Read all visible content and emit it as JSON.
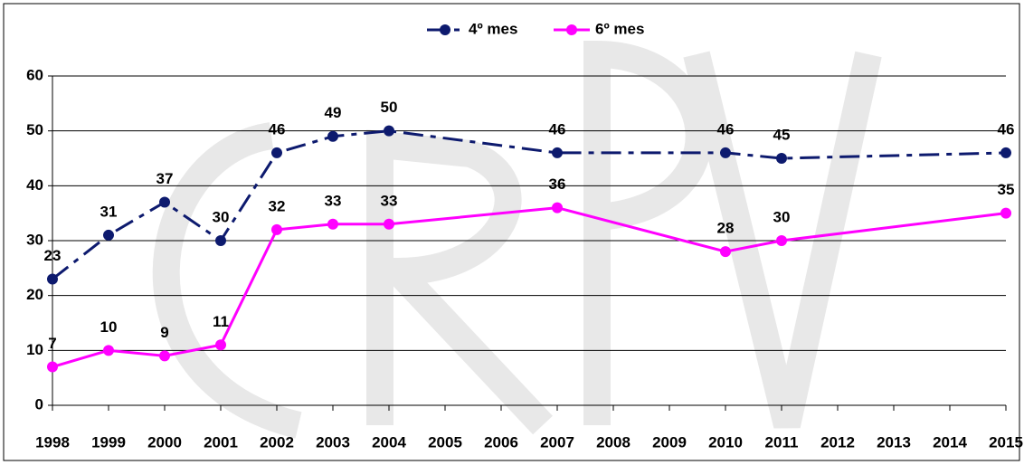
{
  "chart_data": {
    "type": "line",
    "x": [
      1998,
      1999,
      2000,
      2001,
      2002,
      2003,
      2004,
      2007,
      2010,
      2011,
      2015
    ],
    "series": [
      {
        "name": "4º mes",
        "color": "#0d1a6e",
        "line_style": "dash-dot",
        "values": [
          23,
          31,
          37,
          30,
          46,
          49,
          50,
          46,
          46,
          45,
          46
        ]
      },
      {
        "name": "6º mes",
        "color": "#ff00ff",
        "line_style": "solid",
        "values": [
          7,
          10,
          9,
          11,
          32,
          33,
          33,
          36,
          28,
          30,
          35
        ]
      }
    ],
    "xlim": [
      1998,
      2015
    ],
    "xticks": [
      1998,
      1999,
      2000,
      2001,
      2002,
      2003,
      2004,
      2005,
      2006,
      2007,
      2008,
      2009,
      2010,
      2011,
      2012,
      2013,
      2014,
      2015
    ],
    "ylim": [
      0,
      60
    ],
    "yticks": [
      0,
      10,
      20,
      30,
      40,
      50,
      60
    ],
    "grid": true,
    "legend": "top"
  }
}
